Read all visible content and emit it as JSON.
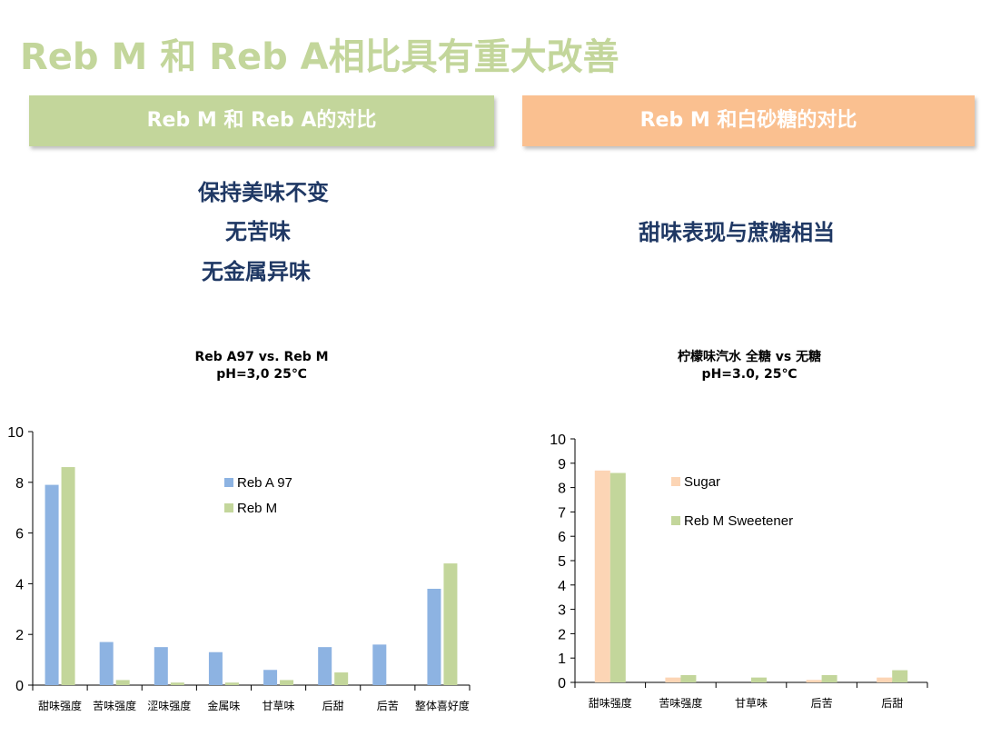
{
  "title": "Reb M 和 Reb A相比具有重大改善",
  "left": {
    "header": "Reb M 和 Reb A的对比",
    "points": [
      "保持美味不变",
      "无苦味",
      "无金属异味"
    ],
    "color": "#c3d69b"
  },
  "right": {
    "header": "Reb M 和白砂糖的对比",
    "points": [
      "甜味表现与蔗糖相当"
    ],
    "color": "#fac090"
  },
  "chart_data": [
    {
      "type": "bar",
      "title": "Reb A97 vs. Reb M",
      "subtitle": "pH=3,0 25℃",
      "categories": [
        "甜味强度",
        "苦味强度",
        "涩味强度",
        "金属味",
        "甘草味",
        "后甜",
        "后苦",
        "整体喜好度"
      ],
      "series": [
        {
          "name": "Reb A 97",
          "color": "#8db3e2",
          "values": [
            7.9,
            1.7,
            1.5,
            1.3,
            0.6,
            1.5,
            1.6,
            3.8
          ]
        },
        {
          "name": "Reb M",
          "color": "#c3d69b",
          "values": [
            8.6,
            0.2,
            0.1,
            0.1,
            0.2,
            0.5,
            0,
            4.8
          ]
        }
      ],
      "ylim": [
        0,
        10
      ],
      "yticks": [
        0,
        2,
        4,
        6,
        8,
        10
      ],
      "legend": "center"
    },
    {
      "type": "bar",
      "title": "柠檬味汽水 全糖 vs 无糖",
      "subtitle": "pH=3.0, 25℃",
      "categories": [
        "甜味强度",
        "苦味强度",
        "甘草味",
        "后苦",
        "后甜"
      ],
      "series": [
        {
          "name": "Sugar",
          "color": "#fcd5b5",
          "values": [
            8.7,
            0.2,
            0,
            0.1,
            0.2
          ]
        },
        {
          "name": "Reb M Sweetener",
          "color": "#c3d69b",
          "values": [
            8.6,
            0.3,
            0.2,
            0.3,
            0.5
          ]
        }
      ],
      "ylim": [
        0,
        10
      ],
      "yticks": [
        0,
        1,
        2,
        3,
        4,
        5,
        6,
        7,
        8,
        9,
        10
      ],
      "legend": "center"
    }
  ]
}
